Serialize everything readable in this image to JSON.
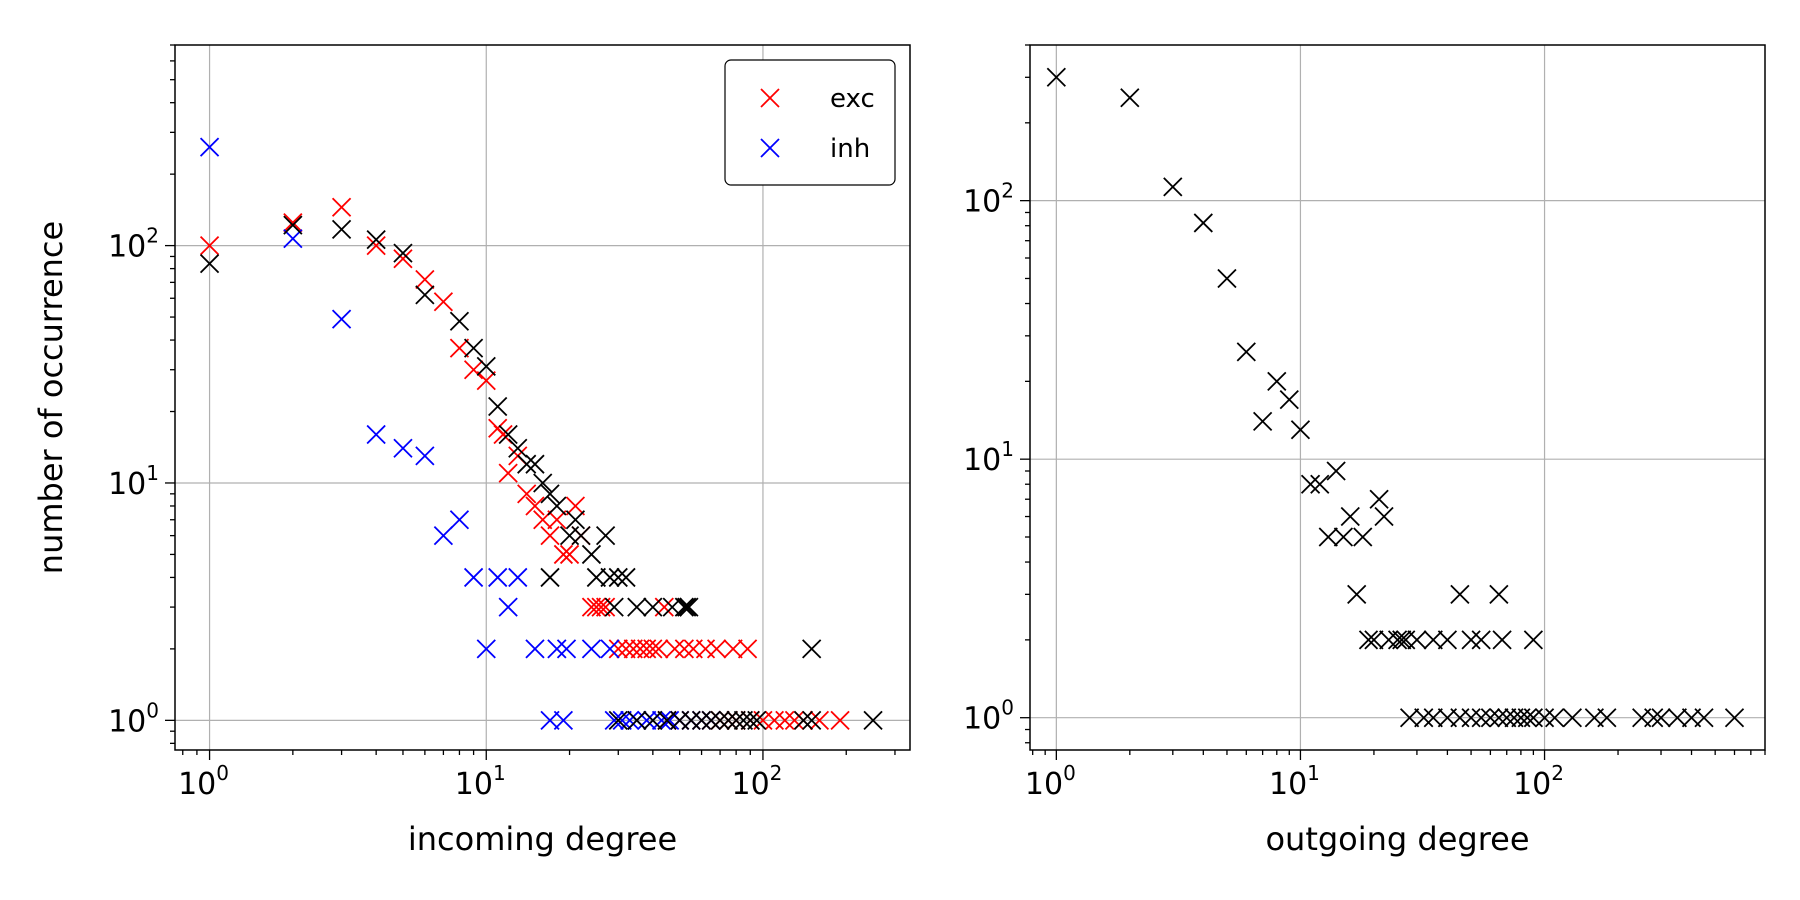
{
  "chart_data": [
    {
      "type": "scatter",
      "panel": "left",
      "xscale": "log",
      "yscale": "log",
      "xlim": [
        0.75,
        340
      ],
      "ylim": [
        0.75,
        700
      ],
      "xlabel": "incoming degree",
      "ylabel": "number of occurrence",
      "xticks": [
        {
          "base": "10",
          "exp": "0",
          "value": 1
        },
        {
          "base": "10",
          "exp": "1",
          "value": 10
        },
        {
          "base": "10",
          "exp": "2",
          "value": 100
        }
      ],
      "yticks": [
        {
          "base": "10",
          "exp": "0",
          "value": 1
        },
        {
          "base": "10",
          "exp": "1",
          "value": 10
        },
        {
          "base": "10",
          "exp": "2",
          "value": 100
        }
      ],
      "grid": true,
      "marker": "x",
      "legend": {
        "position": "top-right",
        "entries": [
          "exc",
          "inh"
        ]
      },
      "series": [
        {
          "name": "exc",
          "color": "#ff0000",
          "points": [
            [
              1,
              100
            ],
            [
              2,
              125
            ],
            [
              3,
              145
            ],
            [
              4,
              100
            ],
            [
              5,
              88
            ],
            [
              6,
              72
            ],
            [
              7,
              58
            ],
            [
              8,
              37
            ],
            [
              9,
              30
            ],
            [
              10,
              27
            ],
            [
              11,
              17
            ],
            [
              11.5,
              16
            ],
            [
              12,
              11
            ],
            [
              13,
              13
            ],
            [
              14,
              9
            ],
            [
              15,
              8
            ],
            [
              16,
              7
            ],
            [
              17,
              6
            ],
            [
              18,
              7
            ],
            [
              19,
              5
            ],
            [
              20,
              5
            ],
            [
              21,
              8
            ],
            [
              22,
              6
            ],
            [
              24,
              3
            ],
            [
              25,
              3
            ],
            [
              26,
              3
            ],
            [
              27,
              3
            ],
            [
              30,
              2
            ],
            [
              32,
              2
            ],
            [
              34,
              2
            ],
            [
              36,
              2
            ],
            [
              38,
              2
            ],
            [
              40,
              2
            ],
            [
              42,
              2
            ],
            [
              44,
              3
            ],
            [
              48,
              2
            ],
            [
              52,
              2
            ],
            [
              56,
              2
            ],
            [
              62,
              2
            ],
            [
              68,
              2
            ],
            [
              78,
              2
            ],
            [
              88,
              2
            ],
            [
              45,
              1
            ],
            [
              50,
              1
            ],
            [
              55,
              1
            ],
            [
              60,
              1
            ],
            [
              65,
              1
            ],
            [
              70,
              1
            ],
            [
              75,
              1
            ],
            [
              80,
              1
            ],
            [
              90,
              1
            ],
            [
              100,
              1
            ],
            [
              110,
              1
            ],
            [
              120,
              1
            ],
            [
              130,
              1
            ],
            [
              140,
              1
            ],
            [
              160,
              1
            ],
            [
              190,
              1
            ]
          ]
        },
        {
          "name": "inh",
          "color": "#0000ff",
          "points": [
            [
              1,
              260
            ],
            [
              2,
              107
            ],
            [
              3,
              49
            ],
            [
              4,
              16
            ],
            [
              5,
              14
            ],
            [
              6,
              13
            ],
            [
              7,
              6
            ],
            [
              8,
              7
            ],
            [
              9,
              4
            ],
            [
              10,
              2
            ],
            [
              11,
              4
            ],
            [
              12,
              3
            ],
            [
              13,
              4
            ],
            [
              15,
              2
            ],
            [
              17,
              1
            ],
            [
              18,
              2
            ],
            [
              19,
              1
            ],
            [
              19.5,
              2
            ],
            [
              24,
              2
            ],
            [
              28,
              2
            ],
            [
              29,
              1
            ],
            [
              31,
              1
            ],
            [
              33,
              1
            ],
            [
              35,
              1
            ],
            [
              38,
              1
            ],
            [
              40,
              1
            ],
            [
              43,
              1
            ],
            [
              46,
              1
            ],
            [
              50,
              1
            ],
            [
              55,
              1
            ],
            [
              60,
              1
            ],
            [
              65,
              1
            ]
          ]
        },
        {
          "name": "",
          "color": "#000000",
          "points": [
            [
              1,
              84
            ],
            [
              2,
              122
            ],
            [
              3,
              117
            ],
            [
              4,
              106
            ],
            [
              5,
              93
            ],
            [
              6,
              62
            ],
            [
              8,
              48
            ],
            [
              9,
              37
            ],
            [
              10,
              31
            ],
            [
              11,
              21
            ],
            [
              12,
              16
            ],
            [
              13,
              14
            ],
            [
              14,
              12
            ],
            [
              15,
              12
            ],
            [
              16,
              10
            ],
            [
              17,
              9
            ],
            [
              18,
              8
            ],
            [
              20,
              6
            ],
            [
              21,
              7
            ],
            [
              22,
              6
            ],
            [
              24,
              5
            ],
            [
              25,
              4
            ],
            [
              27,
              6
            ],
            [
              28,
              4
            ],
            [
              29,
              3
            ],
            [
              30,
              4
            ],
            [
              32,
              4
            ],
            [
              35,
              3
            ],
            [
              40,
              3
            ],
            [
              47,
              3
            ],
            [
              52,
              3
            ],
            [
              53,
              3
            ],
            [
              54,
              3
            ],
            [
              17,
              4
            ],
            [
              150,
              2
            ],
            [
              30,
              1
            ],
            [
              35,
              1
            ],
            [
              40,
              1
            ],
            [
              45,
              1
            ],
            [
              50,
              1
            ],
            [
              55,
              1
            ],
            [
              60,
              1
            ],
            [
              65,
              1
            ],
            [
              70,
              1
            ],
            [
              75,
              1
            ],
            [
              80,
              1
            ],
            [
              85,
              1
            ],
            [
              90,
              1
            ],
            [
              95,
              1
            ],
            [
              140,
              1
            ],
            [
              150,
              1
            ],
            [
              250,
              1
            ]
          ]
        }
      ]
    },
    {
      "type": "scatter",
      "panel": "right",
      "xscale": "log",
      "yscale": "log",
      "xlim": [
        0.78,
        800
      ],
      "ylim": [
        0.75,
        400
      ],
      "xlabel": "outgoing degree",
      "ylabel": "",
      "xticks": [
        {
          "base": "10",
          "exp": "0",
          "value": 1
        },
        {
          "base": "10",
          "exp": "1",
          "value": 10
        },
        {
          "base": "10",
          "exp": "2",
          "value": 100
        }
      ],
      "yticks": [
        {
          "base": "10",
          "exp": "0",
          "value": 1
        },
        {
          "base": "10",
          "exp": "1",
          "value": 10
        },
        {
          "base": "10",
          "exp": "2",
          "value": 100
        }
      ],
      "grid": true,
      "marker": "x",
      "series": [
        {
          "name": "",
          "color": "#000000",
          "points": [
            [
              1,
              300
            ],
            [
              2,
              250
            ],
            [
              3,
              113
            ],
            [
              4,
              82
            ],
            [
              5,
              50
            ],
            [
              6,
              26
            ],
            [
              7,
              14
            ],
            [
              8,
              20
            ],
            [
              9,
              17
            ],
            [
              10,
              13
            ],
            [
              11,
              8
            ],
            [
              12,
              8
            ],
            [
              13,
              5
            ],
            [
              14,
              9
            ],
            [
              15,
              5
            ],
            [
              16,
              6
            ],
            [
              17,
              3
            ],
            [
              18,
              5
            ],
            [
              19,
              2
            ],
            [
              21,
              7
            ],
            [
              22,
              6
            ],
            [
              20,
              2
            ],
            [
              23,
              2
            ],
            [
              25,
              2
            ],
            [
              26,
              2
            ],
            [
              27,
              2
            ],
            [
              30,
              2
            ],
            [
              35,
              2
            ],
            [
              40,
              2
            ],
            [
              45,
              3
            ],
            [
              50,
              2
            ],
            [
              55,
              2
            ],
            [
              65,
              3
            ],
            [
              67,
              2
            ],
            [
              90,
              2
            ],
            [
              28,
              1
            ],
            [
              32,
              1
            ],
            [
              35,
              1
            ],
            [
              40,
              1
            ],
            [
              45,
              1
            ],
            [
              50,
              1
            ],
            [
              55,
              1
            ],
            [
              60,
              1
            ],
            [
              65,
              1
            ],
            [
              70,
              1
            ],
            [
              75,
              1
            ],
            [
              80,
              1
            ],
            [
              85,
              1
            ],
            [
              90,
              1
            ],
            [
              100,
              1
            ],
            [
              110,
              1
            ],
            [
              130,
              1
            ],
            [
              160,
              1
            ],
            [
              180,
              1
            ],
            [
              250,
              1
            ],
            [
              280,
              1
            ],
            [
              300,
              1
            ],
            [
              350,
              1
            ],
            [
              400,
              1
            ],
            [
              450,
              1
            ],
            [
              600,
              1
            ]
          ]
        }
      ]
    }
  ]
}
